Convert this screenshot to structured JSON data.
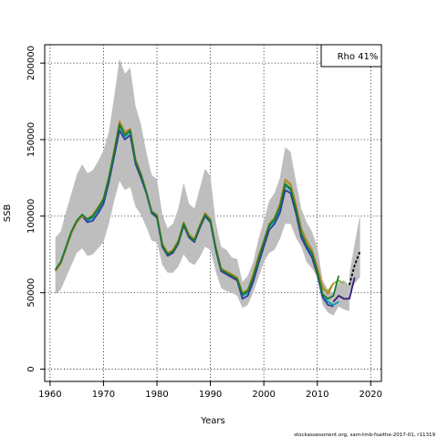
{
  "chart_data": {
    "type": "line",
    "xlabel": "Years",
    "ylabel": "SSB",
    "xlim": [
      1959,
      2022
    ],
    "ylim": [
      -8000,
      212000
    ],
    "x_ticks": [
      "1960",
      "1970",
      "1980",
      "1990",
      "2000",
      "2010",
      "2020"
    ],
    "y_ticks": [
      "0",
      "50000",
      "100000",
      "150000",
      "200000"
    ],
    "grid": "dotted",
    "legend_text": "Rho 41%",
    "legend_position": "top-right",
    "footer": "stockassessment.org, sam-tmb-fsaithe-2017-01, r11319",
    "band_color": "#bebebe",
    "confidence_band": {
      "x": [
        1961,
        1962,
        1963,
        1964,
        1965,
        1966,
        1967,
        1968,
        1969,
        1970,
        1971,
        1972,
        1973,
        1974,
        1975,
        1976,
        1977,
        1978,
        1979,
        1980,
        1981,
        1982,
        1983,
        1984,
        1985,
        1986,
        1987,
        1988,
        1989,
        1990,
        1991,
        1992,
        1993,
        1994,
        1995,
        1996,
        1997,
        1998,
        1999,
        2000,
        2001,
        2002,
        2003,
        2004,
        2005,
        2006,
        2007,
        2008,
        2009,
        2010,
        2011,
        2012,
        2013,
        2014,
        2015,
        2016
      ],
      "lower": [
        49000,
        52000,
        60000,
        68000,
        76000,
        79000,
        74000,
        75000,
        79000,
        83000,
        95000,
        110000,
        123000,
        117000,
        119000,
        106000,
        101000,
        93000,
        84000,
        83000,
        68000,
        63000,
        63000,
        67000,
        75000,
        70000,
        68000,
        73000,
        80000,
        78000,
        64000,
        53000,
        51000,
        50000,
        48000,
        40000,
        42000,
        50000,
        60000,
        70000,
        76000,
        78000,
        85000,
        95000,
        95000,
        86000,
        80000,
        70000,
        66000,
        60000,
        42000,
        37000,
        35000,
        41000,
        39000,
        38000
      ],
      "upper": [
        86000,
        90000,
        103000,
        115000,
        127000,
        134000,
        128000,
        130000,
        136000,
        143000,
        155000,
        178000,
        203000,
        193000,
        197000,
        172000,
        160000,
        142000,
        127000,
        124000,
        101000,
        92000,
        95000,
        105000,
        122000,
        108000,
        105000,
        118000,
        131000,
        126000,
        96000,
        80000,
        78000,
        73000,
        72000,
        57000,
        61000,
        70000,
        85000,
        97000,
        110000,
        115000,
        125000,
        145000,
        142000,
        123000,
        105000,
        96000,
        90000,
        80000,
        58000,
        52000,
        50000,
        57000,
        58000,
        55000
      ]
    },
    "dashed_projection": {
      "color": "#000000",
      "x": [
        2016,
        2017,
        2018
      ],
      "y": [
        55000,
        68000,
        77000
      ],
      "upper": [
        62000,
        82000,
        101000
      ],
      "lower": [
        50000,
        56000,
        60000
      ]
    },
    "series": [
      {
        "color": "#00a0b0",
        "x": [
          1961,
          1962,
          1963,
          1964,
          1965,
          1966,
          1967,
          1968,
          1969,
          1970,
          1971,
          1972,
          1973,
          1974,
          1975,
          1976,
          1977,
          1978,
          1979,
          1980,
          1981,
          1982,
          1983,
          1984,
          1985,
          1986,
          1987,
          1988,
          1989,
          1990,
          1991,
          1992,
          1993,
          1994,
          1995,
          1996,
          1997,
          1998,
          1999,
          2000,
          2001,
          2002,
          2003,
          2004,
          2005,
          2006,
          2007,
          2008,
          2009,
          2010,
          2011,
          2012,
          2013,
          2014
        ],
        "y": [
          65000,
          70000,
          80000,
          90000,
          97000,
          101000,
          97000,
          99000,
          104000,
          110000,
          124000,
          141000,
          159000,
          152000,
          155000,
          136000,
          127000,
          116000,
          103000,
          100000,
          81000,
          75000,
          77000,
          83000,
          95000,
          87000,
          84000,
          93000,
          101000,
          97000,
          79000,
          65000,
          63000,
          61000,
          59000,
          48000,
          50000,
          59000,
          71000,
          82000,
          93000,
          97000,
          104000,
          120000,
          117000,
          104000,
          88000,
          80000,
          75000,
          64000,
          48000,
          44000,
          42000,
          44000
        ]
      },
      {
        "color": "#2d3d9e",
        "x": [
          1961,
          1962,
          1963,
          1964,
          1965,
          1966,
          1967,
          1968,
          1969,
          1970,
          1971,
          1972,
          1973,
          1974,
          1975,
          1976,
          1977,
          1978,
          1979,
          1980,
          1981,
          1982,
          1983,
          1984,
          1985,
          1986,
          1987,
          1988,
          1989,
          1990,
          1991,
          1992,
          1993,
          1994,
          1995,
          1996,
          1997,
          1998,
          1999,
          2000,
          2001,
          2002,
          2003,
          2004,
          2005,
          2006,
          2007,
          2008,
          2009,
          2010,
          2011,
          2012,
          2013
        ],
        "y": [
          65000,
          69000,
          79000,
          89000,
          96000,
          100000,
          96000,
          97000,
          102000,
          108000,
          122000,
          139000,
          156000,
          150000,
          153000,
          134000,
          125000,
          115000,
          102000,
          99000,
          80000,
          74000,
          76000,
          82000,
          94000,
          86000,
          83000,
          92000,
          100000,
          96000,
          78000,
          64000,
          62000,
          60000,
          58000,
          46000,
          48000,
          57000,
          69000,
          80000,
          91000,
          95000,
          102000,
          117000,
          115000,
          102000,
          86000,
          79000,
          73000,
          62000,
          47000,
          42000,
          41000
        ]
      },
      {
        "color": "#8fb83a",
        "x": [
          1961,
          1962,
          1963,
          1964,
          1965,
          1966,
          1967,
          1968,
          1969,
          1970,
          1971,
          1972,
          1973,
          1974,
          1975,
          1976,
          1977,
          1978,
          1979,
          1980,
          1981,
          1982,
          1983,
          1984,
          1985,
          1986,
          1987,
          1988,
          1989,
          1990,
          1991,
          1992,
          1993,
          1994,
          1995,
          1996,
          1997,
          1998,
          1999,
          2000,
          2001,
          2002,
          2003,
          2004,
          2005,
          2006,
          2007,
          2008,
          2009,
          2010,
          2011,
          2012,
          2013,
          2014,
          2015
        ],
        "y": [
          65000,
          70000,
          80000,
          90000,
          97000,
          101000,
          98000,
          101000,
          106000,
          112000,
          126000,
          143000,
          161000,
          154000,
          157000,
          137000,
          128000,
          116000,
          103000,
          101000,
          82000,
          76000,
          78000,
          84000,
          96000,
          88000,
          85000,
          94000,
          102000,
          98000,
          80000,
          66000,
          64000,
          62000,
          60000,
          50000,
          52000,
          62000,
          74000,
          84000,
          95000,
          99000,
          107000,
          123000,
          120000,
          107000,
          91000,
          83000,
          78000,
          66000,
          52000,
          51000,
          56000,
          58000,
          56000
        ]
      },
      {
        "color": "#b8862b",
        "x": [
          1961,
          1962,
          1963,
          1964,
          1965,
          1966,
          1967,
          1968,
          1969,
          1970,
          1971,
          1972,
          1973,
          1974,
          1975,
          1976,
          1977,
          1978,
          1979,
          1980,
          1981,
          1982,
          1983,
          1984,
          1985,
          1986,
          1987,
          1988,
          1989,
          1990,
          1991,
          1992,
          1993,
          1994,
          1995,
          1996,
          1997,
          1998,
          1999,
          2000,
          2001,
          2002,
          2003,
          2004,
          2005,
          2006,
          2007,
          2008,
          2009,
          2010,
          2011,
          2012,
          2013
        ],
        "y": [
          64000,
          69000,
          79000,
          89000,
          96000,
          100000,
          98000,
          101000,
          106000,
          111000,
          125000,
          143000,
          162000,
          155000,
          157000,
          137000,
          128000,
          116000,
          103000,
          101000,
          82000,
          76000,
          78000,
          84000,
          96000,
          88000,
          85000,
          94000,
          102000,
          98000,
          80000,
          66000,
          64000,
          62000,
          60000,
          50000,
          52000,
          62000,
          74000,
          84000,
          95000,
          99000,
          108000,
          124000,
          121000,
          108000,
          92000,
          84000,
          78000,
          67000,
          54000,
          49000,
          56000
        ]
      },
      {
        "color": "#1c7a2e",
        "x": [
          1961,
          1962,
          1963,
          1964,
          1965,
          1966,
          1967,
          1968,
          1969,
          1970,
          1971,
          1972,
          1973,
          1974,
          1975,
          1976,
          1977,
          1978,
          1979,
          1980,
          1981,
          1982,
          1983,
          1984,
          1985,
          1986,
          1987,
          1988,
          1989,
          1990,
          1991,
          1992,
          1993,
          1994,
          1995,
          1996,
          1997,
          1998,
          1999,
          2000,
          2001,
          2002,
          2003,
          2004,
          2005,
          2006,
          2007,
          2008,
          2009,
          2010,
          2011,
          2012,
          2013,
          2014
        ],
        "y": [
          65000,
          70000,
          80000,
          90000,
          97000,
          101000,
          98000,
          100000,
          105000,
          111000,
          125000,
          142000,
          160000,
          153000,
          156000,
          136000,
          127000,
          116000,
          103000,
          100000,
          81000,
          75000,
          77000,
          83000,
          95000,
          87000,
          84000,
          93000,
          101000,
          97000,
          79000,
          65000,
          63000,
          61000,
          59000,
          49000,
          51000,
          60000,
          72000,
          83000,
          94000,
          98000,
          106000,
          121000,
          118000,
          105000,
          89000,
          81000,
          76000,
          64000,
          49000,
          46000,
          48000,
          61000
        ]
      },
      {
        "color": "#3a1a7a",
        "x": [
          2013,
          2014,
          2015,
          2016,
          2017
        ],
        "y": [
          44000,
          48000,
          46000,
          46000,
          60000
        ]
      }
    ]
  }
}
